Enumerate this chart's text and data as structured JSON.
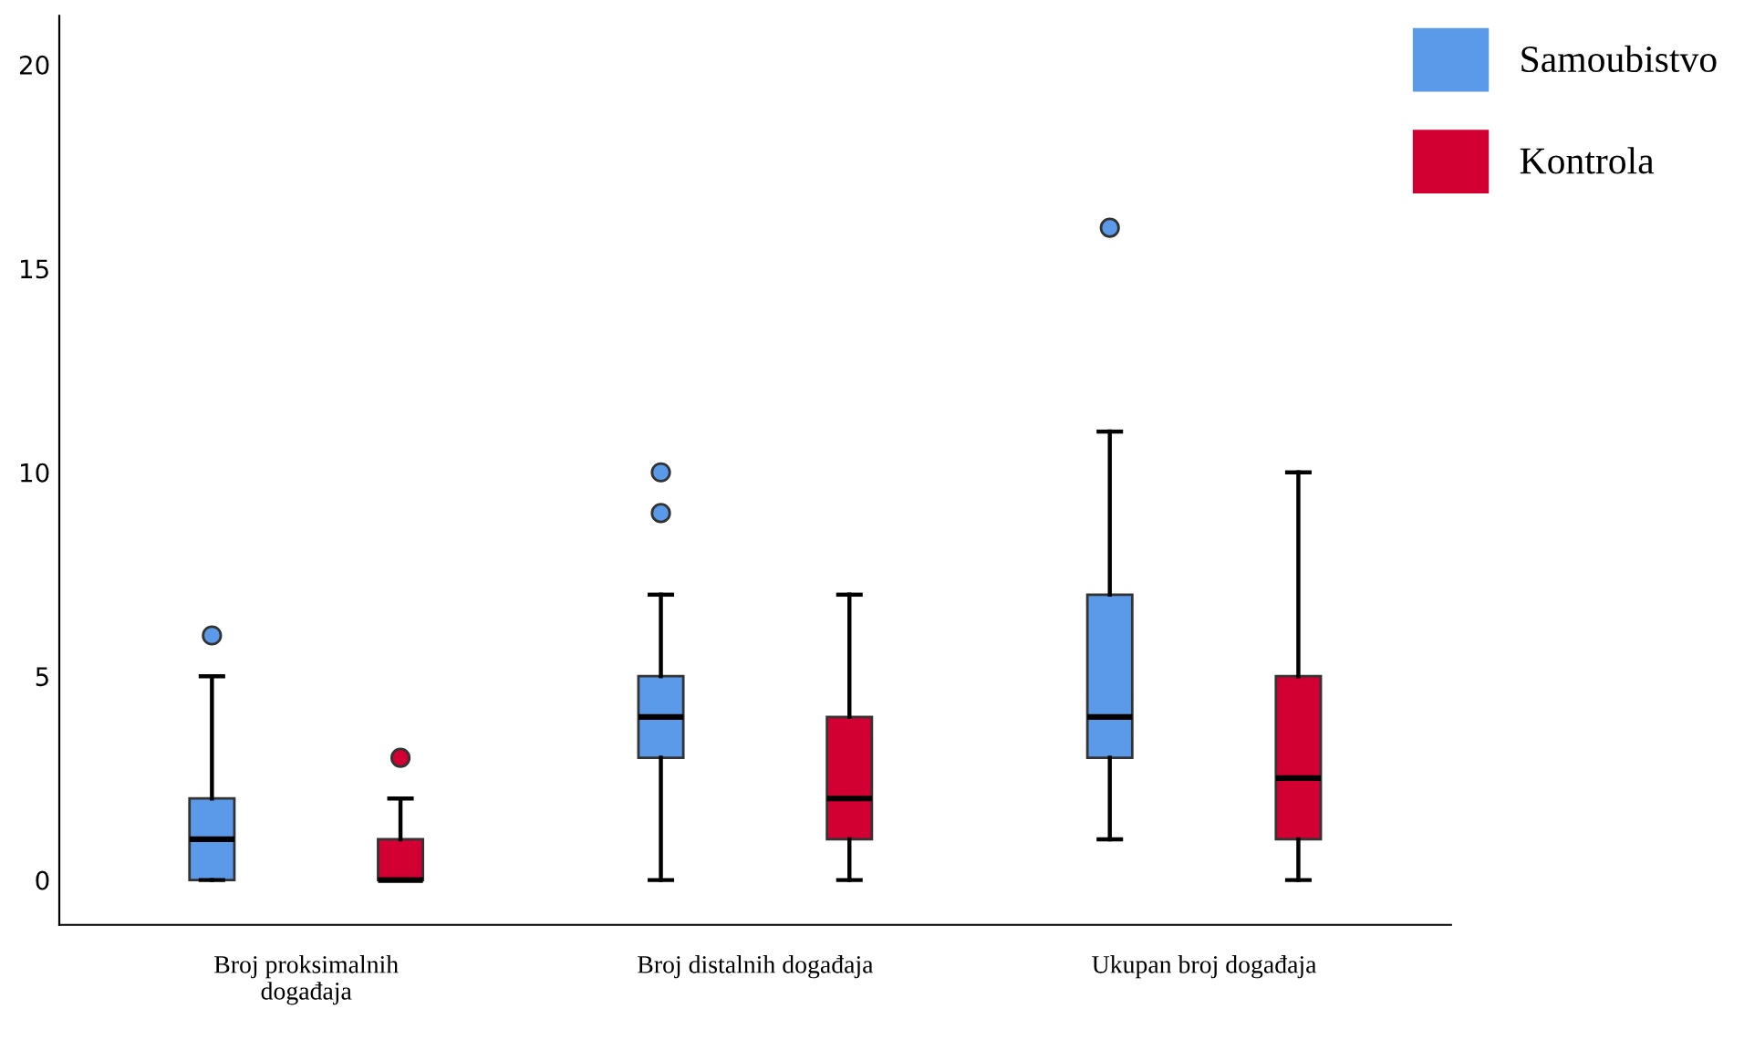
{
  "chart_data": {
    "type": "box",
    "categories": [
      "Broj proksimalnih\ndogađaja",
      "Broj distalnih događaja",
      "Ukupan broj događaja"
    ],
    "series": [
      {
        "name": "Samoubistvo",
        "color": "#5b9ae8",
        "boxes": [
          {
            "low": 0,
            "q1": 0,
            "median": 1,
            "q3": 2,
            "high": 5,
            "outliers": [
              6
            ]
          },
          {
            "low": 0,
            "q1": 3,
            "median": 4,
            "q3": 5,
            "high": 7,
            "outliers": [
              9,
              10
            ]
          },
          {
            "low": 1,
            "q1": 3,
            "median": 4,
            "q3": 7,
            "high": 11,
            "outliers": [
              16
            ]
          }
        ]
      },
      {
        "name": "Kontrola",
        "color": "#d20032",
        "boxes": [
          {
            "low": 0,
            "q1": 0,
            "median": 0,
            "q3": 1,
            "high": 2,
            "outliers": [
              3
            ]
          },
          {
            "low": 0,
            "q1": 1,
            "median": 2,
            "q3": 4,
            "high": 7
          },
          {
            "low": 0,
            "q1": 1,
            "median": 2.5,
            "q3": 5,
            "high": 10
          }
        ]
      }
    ],
    "ylim": [
      -1.1,
      21.2
    ],
    "yticks": [
      0,
      5,
      10,
      15,
      20
    ],
    "grid": false,
    "legend": "top right"
  }
}
